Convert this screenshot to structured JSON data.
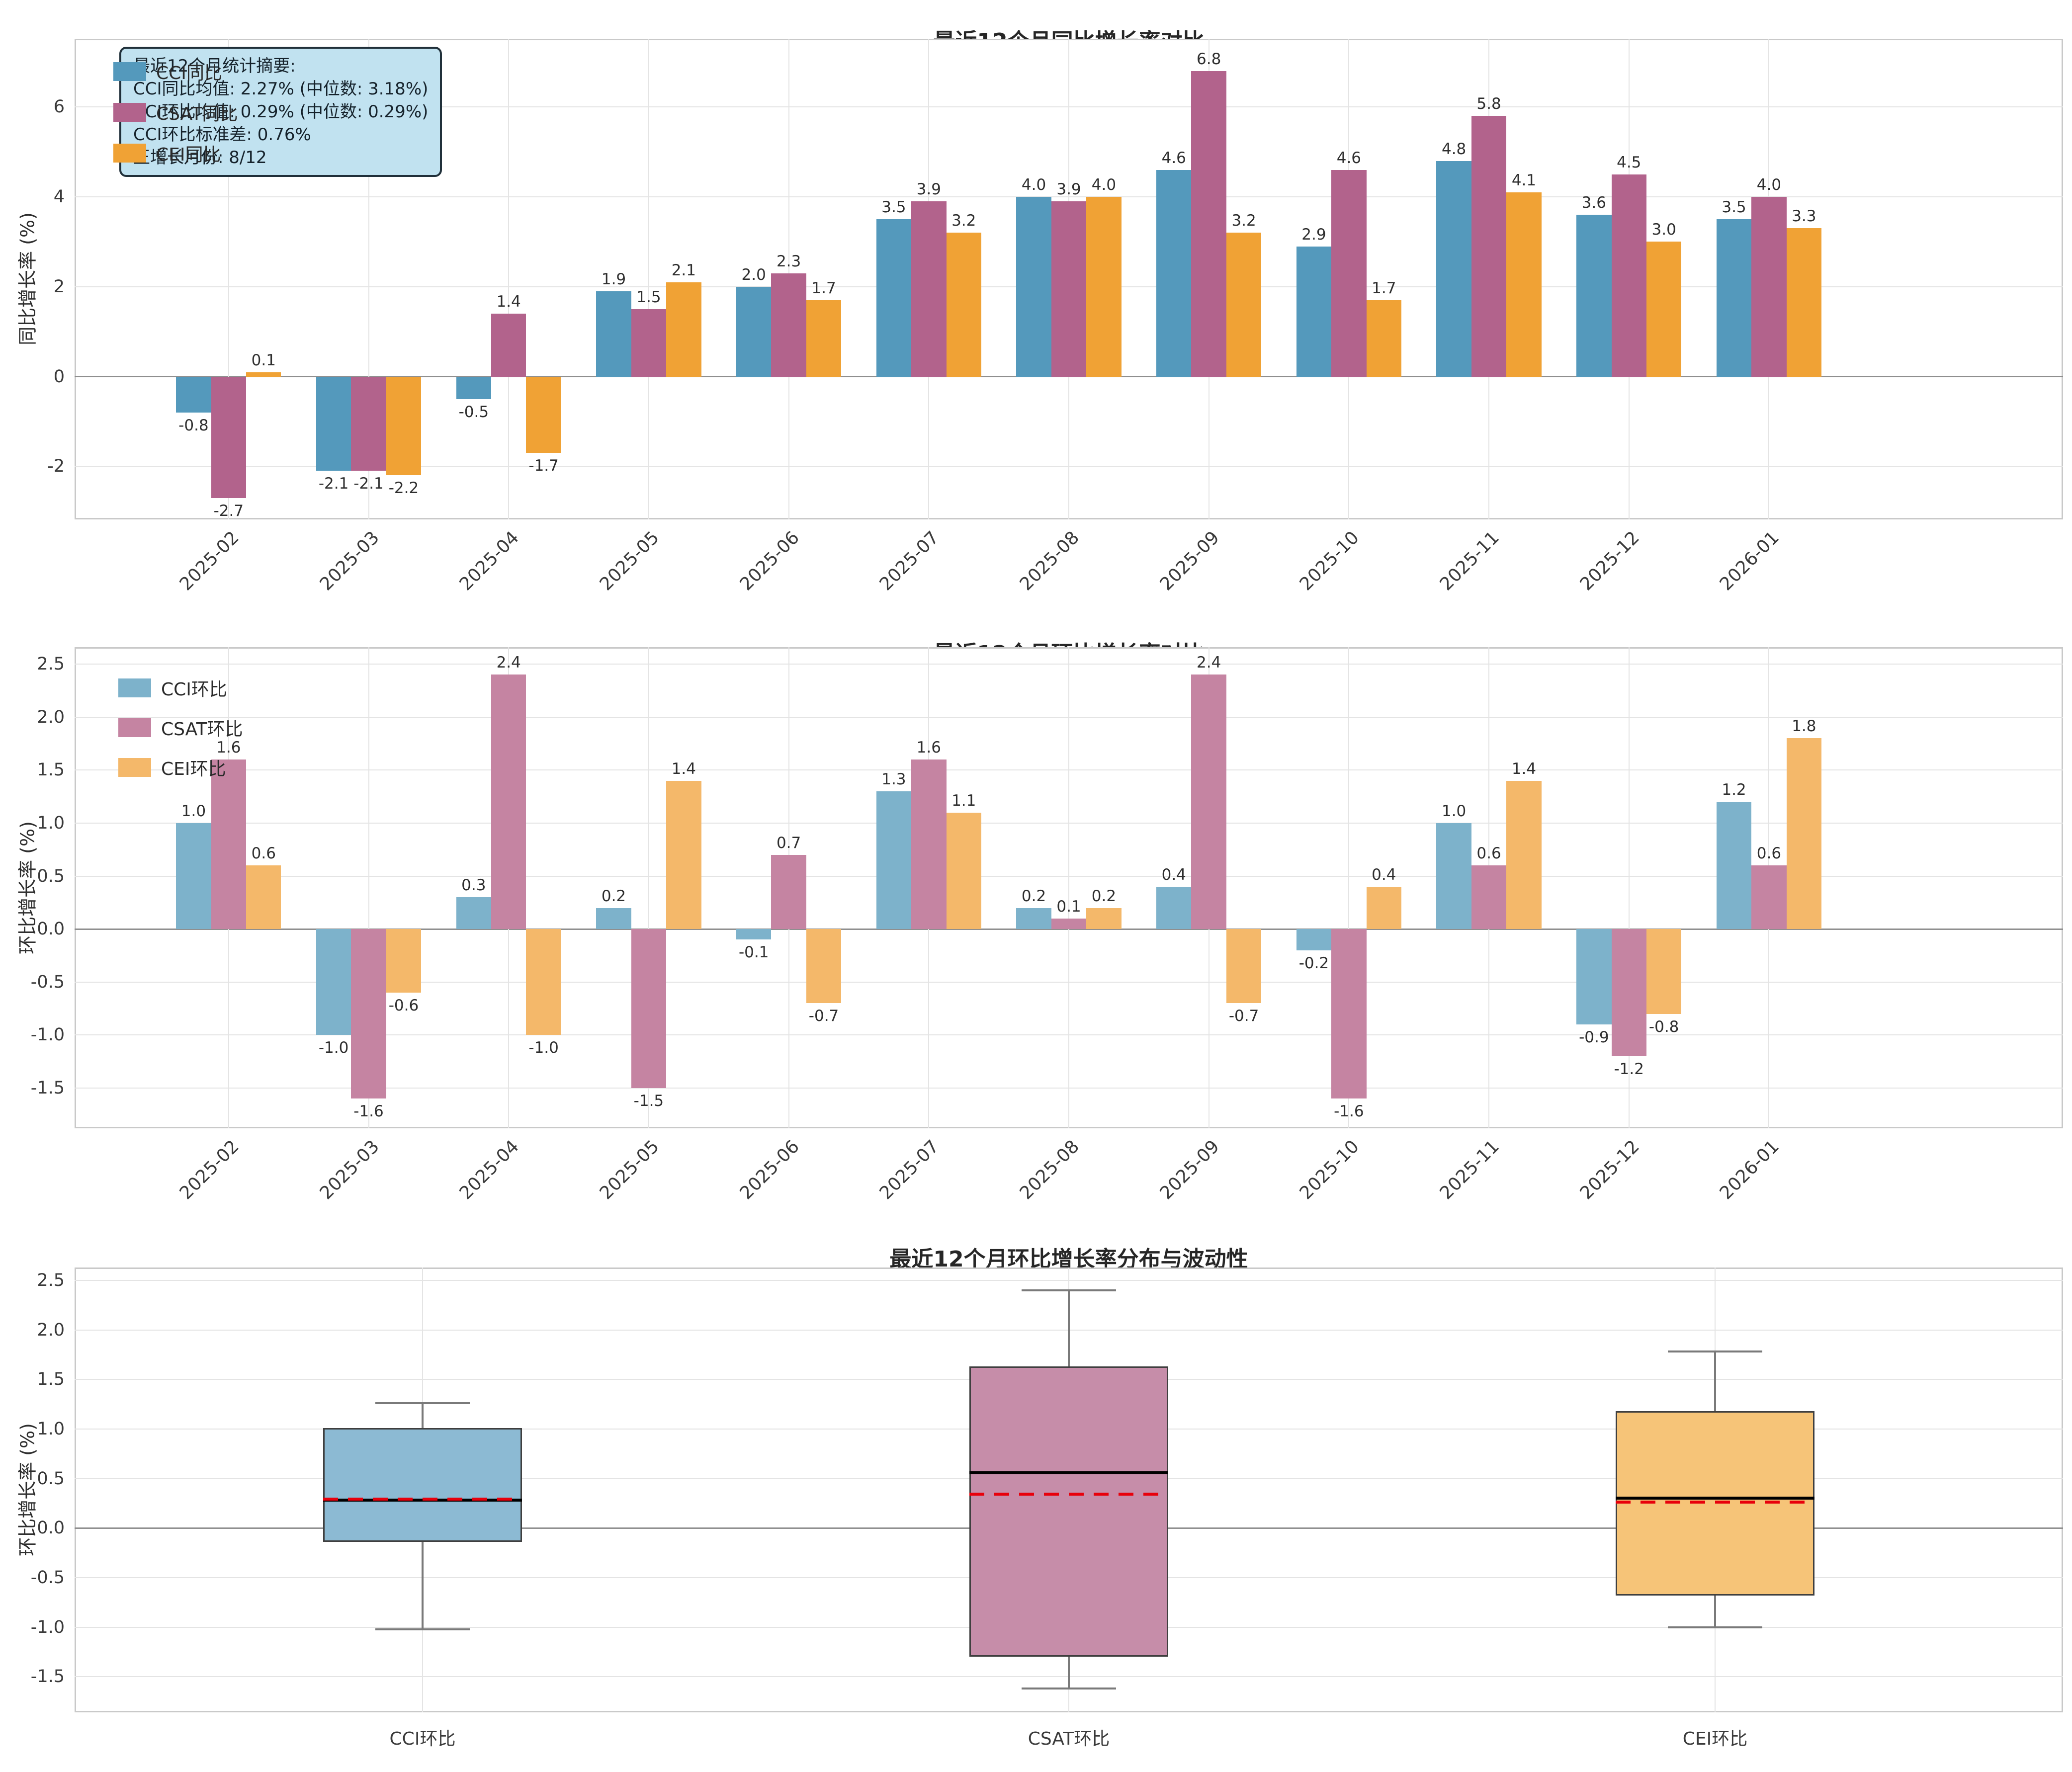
{
  "chart_data": [
    {
      "type": "bar",
      "title": "最近12个月同比增长率对比",
      "ylabel": "同比增长率 (%)",
      "xlabel": "",
      "categories": [
        "2025-02",
        "2025-03",
        "2025-04",
        "2025-05",
        "2025-06",
        "2025-07",
        "2025-08",
        "2025-09",
        "2025-10",
        "2025-11",
        "2025-12",
        "2026-01"
      ],
      "series": [
        {
          "name": "CCI同比",
          "color": "#5499BC",
          "values": [
            -0.8,
            -2.1,
            -0.5,
            1.9,
            2.0,
            3.5,
            4.0,
            4.6,
            2.9,
            4.8,
            3.6,
            3.5
          ]
        },
        {
          "name": "CSAT同比",
          "color": "#B2638C",
          "values": [
            -2.7,
            -2.1,
            1.4,
            1.5,
            2.3,
            3.9,
            3.9,
            6.8,
            4.6,
            5.8,
            4.5,
            4.0
          ]
        },
        {
          "name": "CEI同比",
          "color": "#F0A235",
          "values": [
            0.1,
            -2.2,
            -1.7,
            2.1,
            1.7,
            3.2,
            4.0,
            3.2,
            1.7,
            4.1,
            3.0,
            3.3
          ]
        }
      ],
      "yticks": [
        {
          "v": -2,
          "t": "-2"
        },
        {
          "v": 0,
          "t": "0"
        },
        {
          "v": 2,
          "t": "2"
        },
        {
          "v": 4,
          "t": "4"
        },
        {
          "v": 6,
          "t": "6"
        }
      ],
      "ylim": [
        -3.18,
        7.52
      ],
      "grid": true,
      "legend_position": "upper-left",
      "stats_box": {
        "bg": "#C1E2F0",
        "border": "#20303A",
        "lines": [
          "最近12个月统计摘要:",
          "CCI同比均值: 2.27% (中位数: 3.18%)",
          "CCI环比均值: 0.29% (中位数: 0.29%)",
          "CCI环比标准差: 0.76%",
          "正增长月份: 8/12"
        ]
      }
    },
    {
      "type": "bar",
      "title": "最近12个月环比增长率对比",
      "ylabel": "环比增长率 (%)",
      "xlabel": "",
      "categories": [
        "2025-02",
        "2025-03",
        "2025-04",
        "2025-05",
        "2025-06",
        "2025-07",
        "2025-08",
        "2025-09",
        "2025-10",
        "2025-11",
        "2025-12",
        "2026-01"
      ],
      "series": [
        {
          "name": "CCI环比",
          "color": "#7DB2CB",
          "values": [
            1.0,
            -1.0,
            0.3,
            0.2,
            -0.1,
            1.3,
            0.2,
            0.4,
            -0.2,
            1.0,
            -0.9,
            1.2
          ]
        },
        {
          "name": "CSAT环比",
          "color": "#C584A2",
          "values": [
            1.6,
            -1.6,
            2.4,
            -1.5,
            0.7,
            1.6,
            0.1,
            2.4,
            -1.6,
            0.6,
            -1.2,
            0.6
          ]
        },
        {
          "name": "CEI环比",
          "color": "#F4B86A",
          "values": [
            0.6,
            -0.6,
            -1.0,
            1.4,
            -0.7,
            1.1,
            0.2,
            -0.7,
            0.4,
            1.4,
            -0.8,
            1.8
          ]
        }
      ],
      "yticks": [
        {
          "v": -1.5,
          "t": "-1.5"
        },
        {
          "v": -1.0,
          "t": "-1.0"
        },
        {
          "v": -0.5,
          "t": "-0.5"
        },
        {
          "v": 0,
          "t": "0.0"
        },
        {
          "v": 0.5,
          "t": "0.5"
        },
        {
          "v": 1.0,
          "t": "1.0"
        },
        {
          "v": 1.5,
          "t": "1.5"
        },
        {
          "v": 2.0,
          "t": "2.0"
        },
        {
          "v": 2.5,
          "t": "2.5"
        }
      ],
      "ylim": [
        -1.88,
        2.66
      ],
      "grid": true,
      "legend_position": "upper-left"
    },
    {
      "type": "box",
      "title": "最近12个月环比增长率分布与波动性",
      "ylabel": "环比增长率 (%)",
      "xlabel": "",
      "categories": [
        "CCI环比",
        "CSAT环比",
        "CEI环比"
      ],
      "boxes": [
        {
          "label": "CCI环比",
          "color": "#8CBAD3",
          "whisker_low": -1.02,
          "q1": -0.14,
          "median": 0.28,
          "mean": 0.29,
          "q3": 1.01,
          "whisker_high": 1.26
        },
        {
          "label": "CSAT环比",
          "color": "#C68DA9",
          "whisker_low": -1.62,
          "q1": -1.3,
          "median": 0.56,
          "mean": 0.34,
          "q3": 1.63,
          "whisker_high": 2.4
        },
        {
          "label": "CEI环比",
          "color": "#F6C478",
          "whisker_low": -1.0,
          "q1": -0.68,
          "median": 0.3,
          "mean": 0.26,
          "q3": 1.18,
          "whisker_high": 1.78
        }
      ],
      "yticks": [
        {
          "v": -1.5,
          "t": "-1.5"
        },
        {
          "v": -1.0,
          "t": "-1.0"
        },
        {
          "v": -0.5,
          "t": "-0.5"
        },
        {
          "v": 0,
          "t": "0.0"
        },
        {
          "v": 0.5,
          "t": "0.5"
        },
        {
          "v": 1.0,
          "t": "1.0"
        },
        {
          "v": 1.5,
          "t": "1.5"
        },
        {
          "v": 2.0,
          "t": "2.0"
        },
        {
          "v": 2.5,
          "t": "2.5"
        }
      ],
      "ylim": [
        -1.86,
        2.63
      ],
      "grid": true,
      "median_color": "#000000",
      "mean_color": "#E8000B",
      "whisker_color": "#7A7A7A",
      "box_edge_color": "#3F3F3F"
    }
  ]
}
